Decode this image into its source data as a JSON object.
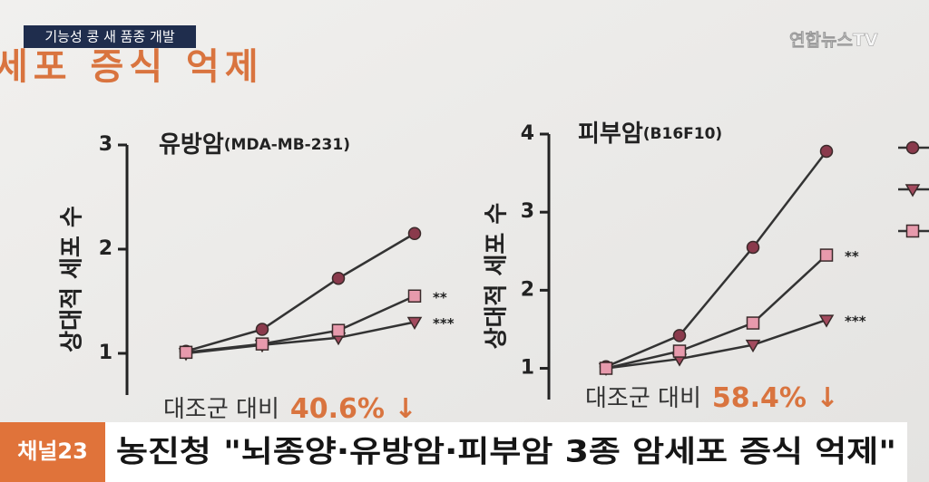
{
  "overlay": {
    "tag": "기능성 콩 새 품종 개발",
    "logo": "연합뉴스TV",
    "heading": "세포 증식 억제",
    "channel": "채널23",
    "headline": "농진청 \"뇌종양·유방암·피부암 3종 암세포 증식 억제\""
  },
  "chart_data": [
    {
      "type": "line",
      "title": "유방암",
      "subtitle": "(MDA-MB-231)",
      "y_label": "상대적 세포 수",
      "categories": [
        null,
        null,
        null,
        null
      ],
      "ylim": [
        0.6,
        3
      ],
      "yticks": [
        1,
        2,
        3
      ],
      "series": [
        {
          "marker": "circle",
          "color": "#8a3a4c",
          "values": [
            1.02,
            1.23,
            1.72,
            2.15
          ]
        },
        {
          "marker": "triangle",
          "color": "#a34a5e",
          "values": [
            1.0,
            1.08,
            1.15,
            1.3
          ],
          "significance": "***"
        },
        {
          "marker": "square",
          "color": "#e79aac",
          "values": [
            1.01,
            1.09,
            1.22,
            1.55
          ],
          "significance": "**"
        }
      ],
      "note": "대조군 대비",
      "note_value": "40.6% ↓"
    },
    {
      "type": "line",
      "title": "피부암",
      "subtitle": "(B16F10)",
      "y_label": "상대적 세포 수",
      "categories": [
        null,
        null,
        null,
        null
      ],
      "ylim": [
        0.6,
        4
      ],
      "yticks": [
        1,
        2,
        3,
        4
      ],
      "series": [
        {
          "marker": "circle",
          "color": "#8a3a4c",
          "values": [
            1.02,
            1.42,
            2.55,
            3.78
          ]
        },
        {
          "marker": "triangle",
          "color": "#a34a5e",
          "values": [
            1.0,
            1.12,
            1.3,
            1.62
          ],
          "significance": "***"
        },
        {
          "marker": "square",
          "color": "#e79aac",
          "values": [
            1.0,
            1.22,
            1.58,
            2.45
          ],
          "significance": "**"
        }
      ],
      "note": "대조군 대비",
      "note_value": "58.4% ↓"
    }
  ]
}
